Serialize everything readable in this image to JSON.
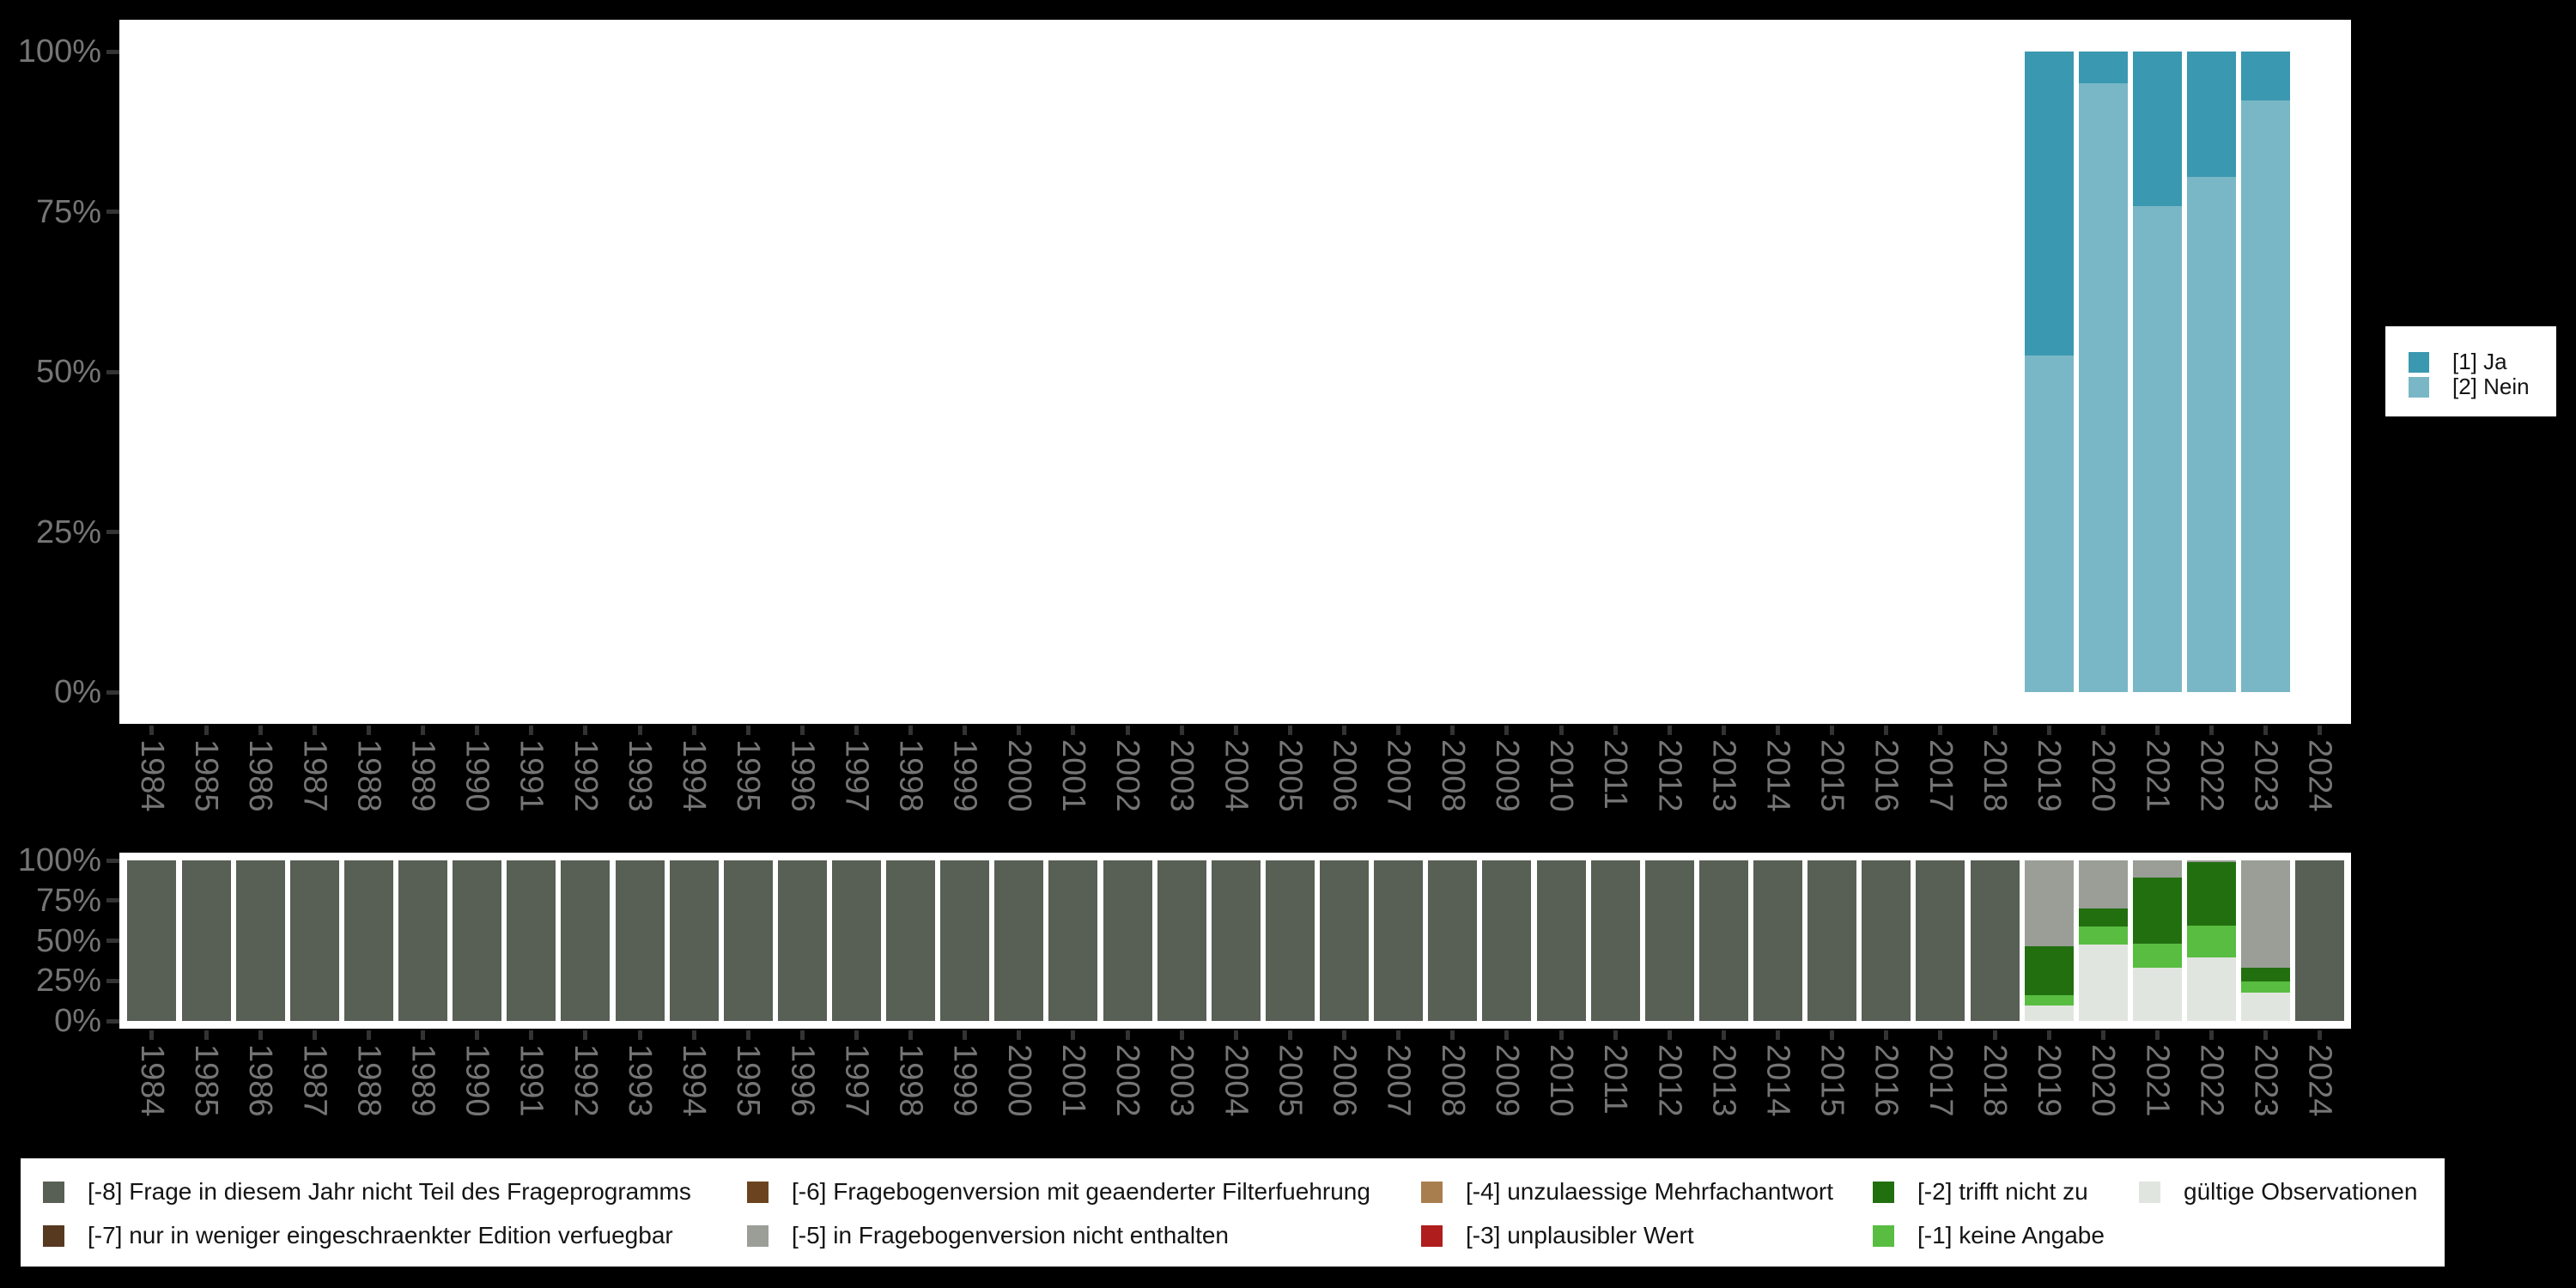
{
  "figure": {
    "background": "#000000",
    "panel_background": "#ffffff",
    "axis_text_color": "#757575",
    "tick_color": "#333333"
  },
  "colors": {
    "ja": "#3a98b0",
    "nein": "#79b7c6",
    "m8": "#585f55",
    "m7": "#573920",
    "m6": "#6b441f",
    "m5": "#9a9e97",
    "m4": "#a97e4e",
    "m3": "#b01d1d",
    "m2": "#226f10",
    "m1": "#58bd41",
    "valid": "#e1e5df"
  },
  "chart_data": [
    {
      "id": "value-frequencies",
      "type": "bar",
      "stacked": true,
      "unit": "percent",
      "ylim": [
        0,
        100
      ],
      "y_tick_labels": [
        "0%",
        "25%",
        "50%",
        "75%",
        "100%"
      ],
      "grid": false,
      "legend_position": "right",
      "categories": [
        "1984",
        "1985",
        "1986",
        "1987",
        "1988",
        "1989",
        "1990",
        "1991",
        "1992",
        "1993",
        "1994",
        "1995",
        "1996",
        "1997",
        "1998",
        "1999",
        "2000",
        "2001",
        "2002",
        "2003",
        "2004",
        "2005",
        "2006",
        "2007",
        "2008",
        "2009",
        "2010",
        "2011",
        "2012",
        "2013",
        "2014",
        "2015",
        "2016",
        "2017",
        "2018",
        "2019",
        "2020",
        "2021",
        "2022",
        "2023",
        "2024"
      ],
      "series": [
        {
          "label": "[1] Ja",
          "color_key": "ja",
          "values": {
            "2019": 47.5,
            "2020": 4.9,
            "2021": 24.1,
            "2022": 19.6,
            "2023": 7.6
          }
        },
        {
          "label": "[2] Nein",
          "color_key": "nein",
          "values": {
            "2019": 52.5,
            "2020": 95.1,
            "2021": 75.9,
            "2022": 80.4,
            "2023": 92.4
          }
        }
      ]
    },
    {
      "id": "missing-composition",
      "type": "bar",
      "stacked": true,
      "unit": "percent",
      "ylim": [
        0,
        100
      ],
      "y_tick_labels": [
        "0%",
        "25%",
        "50%",
        "75%",
        "100%"
      ],
      "grid": false,
      "legend_position": "bottom",
      "categories": [
        "1984",
        "1985",
        "1986",
        "1987",
        "1988",
        "1989",
        "1990",
        "1991",
        "1992",
        "1993",
        "1994",
        "1995",
        "1996",
        "1997",
        "1998",
        "1999",
        "2000",
        "2001",
        "2002",
        "2003",
        "2004",
        "2005",
        "2006",
        "2007",
        "2008",
        "2009",
        "2010",
        "2011",
        "2012",
        "2013",
        "2014",
        "2015",
        "2016",
        "2017",
        "2018",
        "2019",
        "2020",
        "2021",
        "2022",
        "2023",
        "2024"
      ],
      "series": [
        {
          "label": "[-8] Frage in diesem Jahr nicht Teil des Frageprogramms",
          "color_key": "m8",
          "full_years": [
            "1984",
            "1985",
            "1986",
            "1987",
            "1988",
            "1989",
            "1990",
            "1991",
            "1992",
            "1993",
            "1994",
            "1995",
            "1996",
            "1997",
            "1998",
            "1999",
            "2000",
            "2001",
            "2002",
            "2003",
            "2004",
            "2005",
            "2006",
            "2007",
            "2008",
            "2009",
            "2010",
            "2011",
            "2012",
            "2013",
            "2014",
            "2015",
            "2016",
            "2017",
            "2018",
            "2024"
          ],
          "values": {}
        },
        {
          "label": "[-5] in Fragebogenversion nicht enthalten",
          "color_key": "m5",
          "values": {
            "2019": 53.3,
            "2020": 30.2,
            "2021": 10.8,
            "2022": 1.1,
            "2023": 66.8
          }
        },
        {
          "label": "[-2] trifft nicht zu",
          "color_key": "m2",
          "values": {
            "2019": 30.4,
            "2020": 10.8,
            "2021": 41.2,
            "2022": 39.4,
            "2023": 8.7
          }
        },
        {
          "label": "[-1] keine Angabe",
          "color_key": "m1",
          "values": {
            "2019": 6.6,
            "2020": 11.5,
            "2021": 14.7,
            "2022": 20.1,
            "2023": 7.1
          }
        },
        {
          "label": "gültige Observationen",
          "color_key": "valid",
          "values": {
            "2019": 9.7,
            "2020": 47.5,
            "2021": 33.3,
            "2022": 39.4,
            "2023": 17.4
          }
        }
      ]
    }
  ],
  "top_legend": {
    "items": [
      {
        "label": "[1] Ja",
        "color_key": "ja"
      },
      {
        "label": "[2] Nein",
        "color_key": "nein"
      }
    ]
  },
  "bottom_legend": {
    "items": [
      {
        "label": "[-8] Frage in diesem Jahr nicht Teil des Frageprogramms",
        "color_key": "m8"
      },
      {
        "label": "[-7] nur in weniger eingeschraenkter Edition verfuegbar",
        "color_key": "m7"
      },
      {
        "label": "[-6] Fragebogenversion mit geaenderter Filterfuehrung",
        "color_key": "m6"
      },
      {
        "label": "[-5] in Fragebogenversion nicht enthalten",
        "color_key": "m5"
      },
      {
        "label": "[-4] unzulaessige Mehrfachantwort",
        "color_key": "m4"
      },
      {
        "label": "[-3] unplausibler Wert",
        "color_key": "m3"
      },
      {
        "label": "[-2] trifft nicht zu",
        "color_key": "m2"
      },
      {
        "label": "[-1] keine Angabe",
        "color_key": "m1"
      },
      {
        "label": "gültige Observationen",
        "color_key": "valid"
      }
    ]
  }
}
